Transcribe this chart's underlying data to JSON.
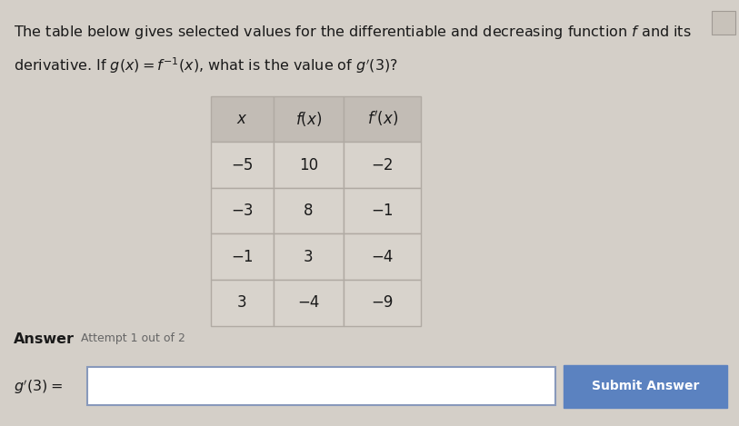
{
  "bg_color": "#d4cfc8",
  "title_line1": "The table below gives selected values for the differentiable and decreasing function $f$ and its",
  "title_line2": "derivative. If $g(x) = f^{-1}(x)$, what is the value of $g'(3)$?",
  "table_headers": [
    "$x$",
    "$f(x)$",
    "$f'(x)$"
  ],
  "table_data": [
    [
      "−5",
      "10",
      "−2"
    ],
    [
      "−3",
      "8",
      "−1"
    ],
    [
      "−1",
      "3",
      "−4"
    ],
    [
      "3",
      "−4",
      "−9"
    ]
  ],
  "answer_label": "Answer",
  "attempt_label": "Attempt 1 out of 2",
  "input_label": "$g'(3) =$",
  "submit_btn_text": "Submit Answer",
  "submit_btn_color": "#5b82c0",
  "submit_btn_text_color": "#ffffff",
  "table_header_bg": "#c2bcb5",
  "table_cell_bg": "#d8d3cc",
  "table_border_color": "#b0aaa3",
  "input_box_color": "#ffffff",
  "input_border_color": "#8899bb",
  "corner_btn_color": "#c8c2ba",
  "corner_btn_border": "#a09a94",
  "text_color": "#1a1a1a"
}
